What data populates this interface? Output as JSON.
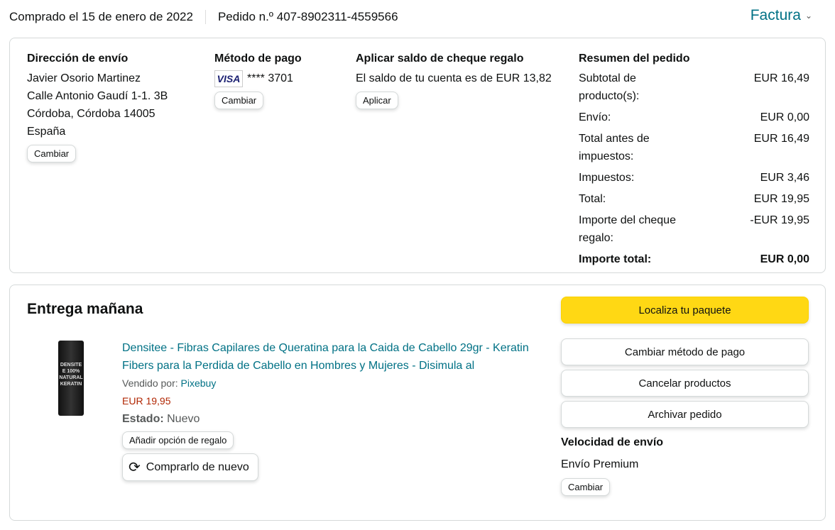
{
  "header": {
    "purchased": "Comprado el 15 de enero de 2022",
    "order_number": "Pedido n.º 407-8902311-4559566",
    "invoice": "Factura"
  },
  "shipping": {
    "title": "Dirección de envío",
    "lines": [
      "Javier Osorio Martinez",
      "Calle Antonio Gaudí 1-1. 3B",
      "Córdoba, Córdoba 14005",
      "España"
    ],
    "change": "Cambiar"
  },
  "payment": {
    "title": "Método de pago",
    "card_brand": "VISA",
    "card": "**** 3701",
    "change": "Cambiar"
  },
  "gift": {
    "title": "Aplicar saldo de cheque regalo",
    "balance": "El saldo de tu cuenta es de EUR 13,82",
    "apply": "Aplicar"
  },
  "summary": {
    "title": "Resumen del pedido",
    "rows": [
      {
        "label": "Subtotal de producto(s):",
        "value": "EUR 16,49"
      },
      {
        "label": "Envío:",
        "value": "EUR 0,00"
      },
      {
        "label": "Total antes de impuestos:",
        "value": "EUR 16,49"
      },
      {
        "label": "Impuestos:",
        "value": "EUR 3,46"
      },
      {
        "label": "Total:",
        "value": "EUR 19,95"
      },
      {
        "label": "Importe del cheque regalo:",
        "value": "-EUR 19,95"
      }
    ],
    "grand_label": "Importe total:",
    "grand_value": "EUR 0,00"
  },
  "delivery": {
    "title": "Entrega mañana",
    "product": {
      "name": "Densitee - Fibras Capilares de Queratina para la Caida de Cabello 29gr - Keratin Fibers para la Perdida de Cabello en Hombres y Mujeres - Disimula al",
      "sold_by_label": "Vendido por:",
      "seller": "Pixebuy",
      "price": "EUR 19,95",
      "condition_label": "Estado:",
      "condition": "Nuevo",
      "image_text": "DENSITEE 100% NATURAL KERATIN",
      "gift_button": "Añadir opción de regalo",
      "buy_again": "Comprarlo de nuevo"
    },
    "actions": {
      "track": "Localiza tu paquete",
      "change_payment": "Cambiar método de pago",
      "cancel": "Cancelar productos",
      "archive": "Archivar pedido"
    },
    "speed_title": "Velocidad de envío",
    "speed": "Envío Premium",
    "speed_change": "Cambiar"
  },
  "colors": {
    "link": "#007185",
    "price": "#b12704",
    "track_button": "#ffd814"
  }
}
